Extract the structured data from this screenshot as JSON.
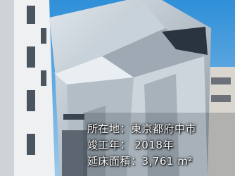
{
  "caption": {
    "lines": [
      "所在地：東京都府中市",
      "竣工年： 2018年",
      "延床面積：3,761 m²"
    ]
  }
}
